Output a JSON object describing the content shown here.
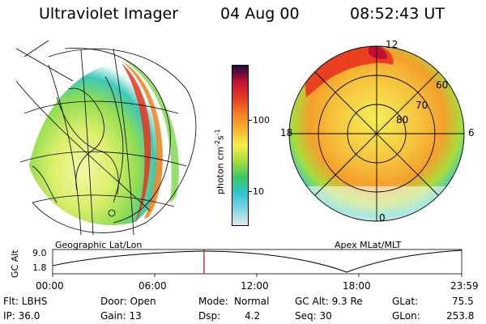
{
  "header": {
    "instrument": "Ultraviolet Imager",
    "date": "04 Aug 00",
    "time": "08:52:43 UT"
  },
  "left_panel": {
    "caption": "Geographic Lat/Lon"
  },
  "right_panel": {
    "caption": "Apex MLat/MLT",
    "mlt_labels": {
      "top": "12",
      "left": "18",
      "right": "6",
      "bottom": "0"
    },
    "lat_labels": [
      "60",
      "70",
      "80"
    ]
  },
  "colorbar": {
    "label": "photon cm",
    "label_sup1": "-2",
    "label_mid": "s",
    "label_sup2": "-1",
    "ticks": [
      "100",
      "10"
    ],
    "scale": "log",
    "colors": [
      "#e8e8e8",
      "#7fd6e6",
      "#2fc3d0",
      "#39c86b",
      "#a6dc3a",
      "#f4ef4b",
      "#f6b42e",
      "#f07e22",
      "#e63a1f",
      "#c0103a",
      "#1f0a3e"
    ]
  },
  "timeline": {
    "ylabel": "GC Alt",
    "y_ticks": [
      "9.0",
      "1.8"
    ],
    "x_ticks": [
      "00:00",
      "06:00",
      "12:00",
      "18:00",
      "23:59"
    ],
    "current_time_hours": 8.88,
    "marker_color": "#cc0000"
  },
  "info": {
    "filter": "Flt: LBHS",
    "ip": "IP: 36.0",
    "door": "Door: Open",
    "gain": "Gain: 13",
    "mode_label": "Mode:",
    "mode_value": "Normal",
    "dsp_label": "Dsp:",
    "dsp_value": "4.2",
    "gcalt": "GC Alt: 9.3 Re",
    "seq": "Seq: 30",
    "glat_label": "GLat:",
    "glat_value": "75.5",
    "glon_label": "GLon:",
    "glon_value": "253.8"
  }
}
